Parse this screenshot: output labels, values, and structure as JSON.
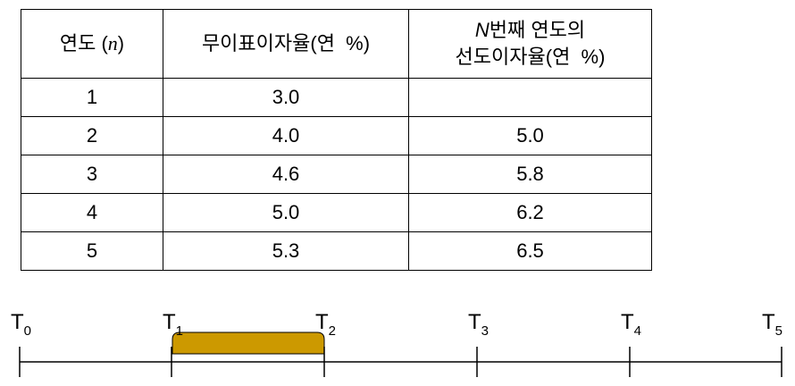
{
  "table": {
    "headers": [
      {
        "pre": "연도 (",
        "var": "n",
        "post": ")"
      },
      {
        "text": "무이표이자율(연  %)"
      },
      {
        "var": "N",
        "line1": "번째 연도의",
        "line2": "선도이자율(연  %)"
      }
    ],
    "rows": [
      [
        "1",
        "3.0",
        null
      ],
      [
        "2",
        "4.0",
        "5.0"
      ],
      [
        "3",
        "4.6",
        "5.8"
      ],
      [
        "4",
        "5.0",
        "6.2"
      ],
      [
        "5",
        "5.3",
        "6.5"
      ]
    ]
  },
  "diagram": {
    "labels": [
      {
        "base": "T",
        "sub": "0"
      },
      {
        "base": "T",
        "sub": "1"
      },
      {
        "base": "T",
        "sub": "2"
      },
      {
        "base": "T",
        "sub": "3"
      },
      {
        "base": "T",
        "sub": "4"
      },
      {
        "base": "T",
        "sub": "5"
      }
    ]
  }
}
